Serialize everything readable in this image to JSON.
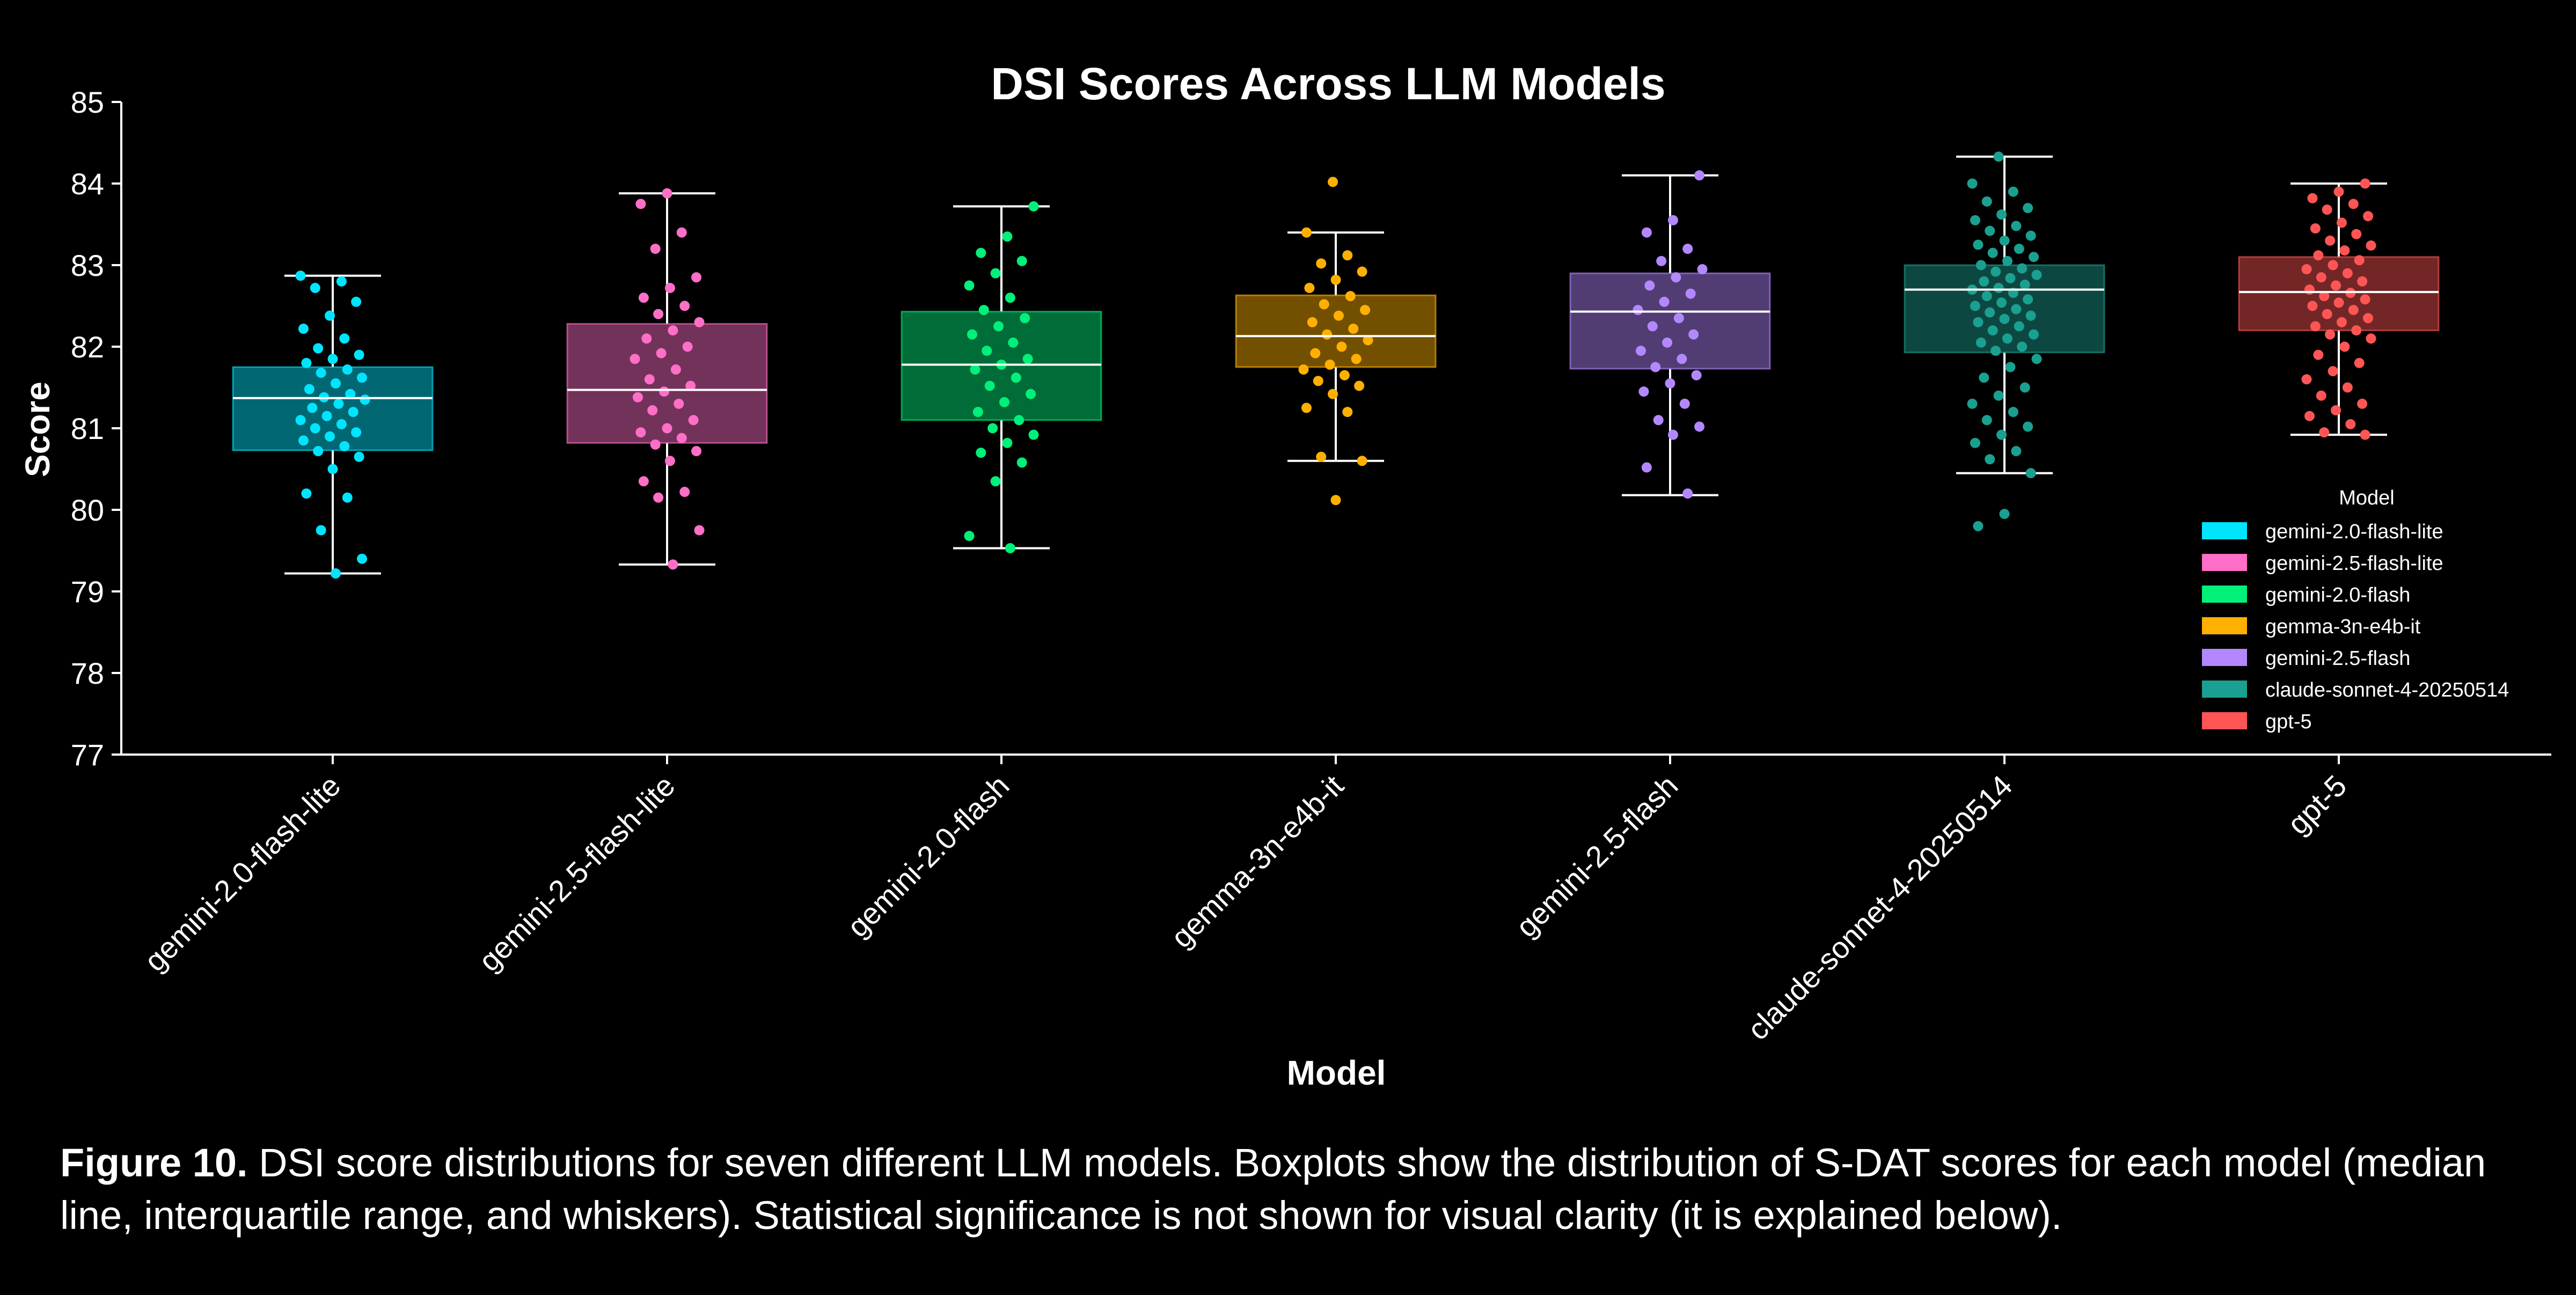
{
  "chart_data": {
    "type": "box",
    "title": "DSI Scores Across LLM Models",
    "xlabel": "Model",
    "ylabel": "Score",
    "ylim": [
      77,
      85
    ],
    "yticks": [
      77,
      78,
      79,
      80,
      81,
      82,
      83,
      84,
      85
    ],
    "grid": false,
    "legend": {
      "title": "Model",
      "placement": "right",
      "entries": [
        "gemini-2.0-flash-lite",
        "gemini-2.5-flash-lite",
        "gemini-2.0-flash",
        "gemma-3n-e4b-it",
        "gemini-2.5-flash",
        "claude-sonnet-4-20250514",
        "gpt-5"
      ]
    },
    "categories": [
      "gemini-2.0-flash-lite",
      "gemini-2.5-flash-lite",
      "gemini-2.0-flash",
      "gemma-3n-e4b-it",
      "gemini-2.5-flash",
      "claude-sonnet-4-20250514",
      "gpt-5"
    ],
    "series": [
      {
        "name": "gemini-2.0-flash-lite",
        "color": "#00e5ff",
        "whisker_low": 79.22,
        "q1": 80.73,
        "median": 81.37,
        "q3": 81.75,
        "whisker_high": 82.87,
        "points": [
          82.87,
          82.8,
          82.72,
          82.55,
          82.38,
          82.22,
          82.1,
          81.98,
          81.9,
          81.85,
          81.8,
          81.72,
          81.68,
          81.62,
          81.55,
          81.48,
          81.42,
          81.38,
          81.35,
          81.3,
          81.25,
          81.2,
          81.15,
          81.1,
          81.05,
          81.0,
          80.95,
          80.9,
          80.85,
          80.78,
          80.72,
          80.65,
          80.5,
          80.2,
          80.15,
          79.75,
          79.4,
          79.22
        ]
      },
      {
        "name": "gemini-2.5-flash-lite",
        "color": "#ff6ec7",
        "whisker_low": 79.33,
        "q1": 80.82,
        "median": 81.47,
        "q3": 82.28,
        "whisker_high": 83.88,
        "points": [
          83.88,
          83.75,
          83.4,
          83.2,
          82.85,
          82.72,
          82.6,
          82.5,
          82.4,
          82.3,
          82.2,
          82.1,
          82.0,
          81.92,
          81.85,
          81.72,
          81.6,
          81.52,
          81.45,
          81.38,
          81.3,
          81.22,
          81.1,
          81.0,
          80.95,
          80.88,
          80.8,
          80.72,
          80.6,
          80.35,
          80.22,
          80.15,
          79.75,
          79.33
        ]
      },
      {
        "name": "gemini-2.0-flash",
        "color": "#00f07a",
        "whisker_low": 79.53,
        "q1": 81.1,
        "median": 81.78,
        "q3": 82.43,
        "whisker_high": 83.72,
        "points": [
          83.72,
          83.35,
          83.15,
          83.05,
          82.9,
          82.75,
          82.6,
          82.45,
          82.35,
          82.25,
          82.15,
          82.05,
          81.95,
          81.85,
          81.78,
          81.72,
          81.62,
          81.52,
          81.42,
          81.32,
          81.2,
          81.1,
          81.0,
          80.92,
          80.82,
          80.7,
          80.58,
          80.35,
          79.68,
          79.53
        ]
      },
      {
        "name": "gemma-3n-e4b-it",
        "color": "#ffb000",
        "whisker_low": 80.6,
        "q1": 81.75,
        "median": 82.13,
        "q3": 82.63,
        "whisker_high": 83.4,
        "points": [
          84.02,
          83.4,
          83.12,
          83.02,
          82.92,
          82.82,
          82.72,
          82.62,
          82.52,
          82.45,
          82.38,
          82.3,
          82.22,
          82.15,
          82.08,
          82.0,
          81.92,
          81.85,
          81.78,
          81.72,
          81.65,
          81.58,
          81.52,
          81.42,
          81.25,
          81.2,
          80.65,
          80.6,
          80.12
        ]
      },
      {
        "name": "gemini-2.5-flash",
        "color": "#b388ff",
        "whisker_low": 80.18,
        "q1": 81.73,
        "median": 82.43,
        "q3": 82.9,
        "whisker_high": 84.1,
        "points": [
          84.1,
          83.55,
          83.4,
          83.2,
          83.05,
          82.95,
          82.85,
          82.75,
          82.65,
          82.55,
          82.45,
          82.35,
          82.25,
          82.15,
          82.05,
          81.95,
          81.85,
          81.75,
          81.65,
          81.55,
          81.45,
          81.3,
          81.1,
          81.02,
          80.92,
          80.52,
          80.2
        ]
      },
      {
        "name": "claude-sonnet-4-20250514",
        "color": "#1aa090",
        "whisker_low": 80.45,
        "q1": 81.93,
        "median": 82.7,
        "q3": 83.0,
        "whisker_high": 84.33,
        "points": [
          84.33,
          84.0,
          83.9,
          83.78,
          83.7,
          83.62,
          83.55,
          83.48,
          83.42,
          83.36,
          83.3,
          83.25,
          83.2,
          83.15,
          83.1,
          83.05,
          83.0,
          82.96,
          82.92,
          82.88,
          82.84,
          82.8,
          82.76,
          82.72,
          82.7,
          82.66,
          82.62,
          82.58,
          82.54,
          82.5,
          82.46,
          82.42,
          82.38,
          82.34,
          82.3,
          82.25,
          82.2,
          82.15,
          82.1,
          82.05,
          82.0,
          81.95,
          81.85,
          81.75,
          81.62,
          81.5,
          81.4,
          81.3,
          81.2,
          81.1,
          81.02,
          80.92,
          80.82,
          80.72,
          80.62,
          80.45,
          79.95,
          79.8
        ]
      },
      {
        "name": "gpt-5",
        "color": "#ff5555",
        "whisker_low": 80.92,
        "q1": 82.2,
        "median": 82.67,
        "q3": 83.1,
        "whisker_high": 84.0,
        "points": [
          84.0,
          83.9,
          83.82,
          83.75,
          83.68,
          83.6,
          83.52,
          83.45,
          83.38,
          83.3,
          83.24,
          83.18,
          83.12,
          83.06,
          83.0,
          82.95,
          82.9,
          82.85,
          82.8,
          82.75,
          82.7,
          82.66,
          82.62,
          82.58,
          82.54,
          82.5,
          82.45,
          82.4,
          82.35,
          82.3,
          82.25,
          82.2,
          82.15,
          82.1,
          82.0,
          81.9,
          81.8,
          81.7,
          81.6,
          81.5,
          81.4,
          81.3,
          81.22,
          81.15,
          81.05,
          80.95,
          80.92
        ]
      }
    ]
  },
  "caption": {
    "lead": "Figure 10.",
    "text": " DSI score distributions for seven different LLM models. Boxplots show the distribution of S-DAT scores for each model (median line, interquartile range, and whiskers). Statistical significance is not shown for visual clarity (it is explained below)."
  }
}
